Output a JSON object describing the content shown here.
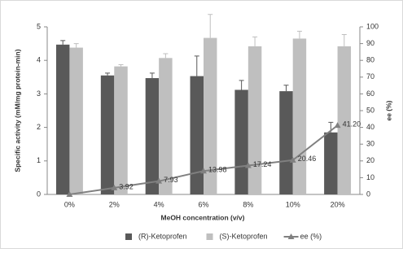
{
  "chart_data": {
    "type": "bar",
    "categories": [
      "0%",
      "2%",
      "4%",
      "6%",
      "8%",
      "10%",
      "20%"
    ],
    "x_label": "MeOH concentration (v/v)",
    "y_label": "Specific activity (mM/mg protein-min)",
    "y2_label": "ee (%)",
    "ylim": [
      0,
      5
    ],
    "yticks": [
      0,
      1,
      2,
      3,
      4,
      5
    ],
    "y2lim": [
      0,
      100
    ],
    "y2ticks": [
      0,
      10,
      20,
      30,
      40,
      50,
      60,
      70,
      80,
      90,
      100
    ],
    "series": [
      {
        "name": "(R)-Ketoprofen",
        "type": "bar",
        "color": "#595959",
        "values": [
          4.47,
          3.55,
          3.47,
          3.53,
          3.12,
          3.08,
          1.85
        ],
        "errors": [
          0.12,
          0.07,
          0.15,
          0.6,
          0.28,
          0.18,
          0.3
        ]
      },
      {
        "name": "(S)-Ketoprofen",
        "type": "bar",
        "color": "#bfbfbf",
        "values": [
          4.38,
          3.82,
          4.07,
          4.67,
          4.42,
          4.65,
          4.42
        ],
        "errors": [
          0.12,
          0.05,
          0.13,
          0.7,
          0.28,
          0.22,
          0.35
        ]
      },
      {
        "name": "ee (%)",
        "type": "line",
        "axis": "y2",
        "color": "#808080",
        "values": [
          0,
          3.92,
          7.93,
          13.98,
          17.24,
          20.46,
          41.2
        ],
        "value_labels": [
          null,
          "3.92",
          "7.93",
          "13.98",
          "17.24",
          "20.46",
          "41.20"
        ]
      }
    ],
    "legend": "bottom"
  }
}
